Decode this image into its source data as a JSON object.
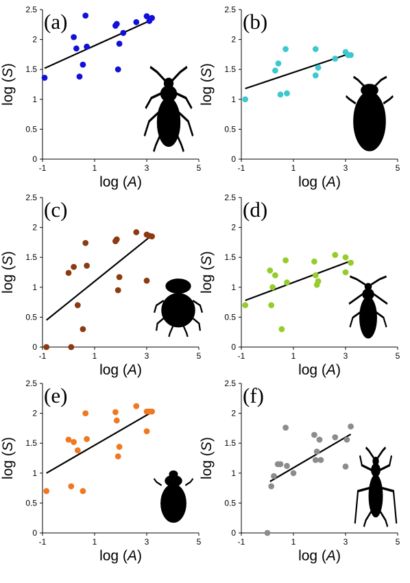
{
  "chart_data": [
    {
      "type": "scatter",
      "panel_label": "(a)",
      "xlabel_prefix": "log (",
      "xlabel_var": "A",
      "xlabel_suffix": ")",
      "ylabel_prefix": "log (",
      "ylabel_var": "S",
      "ylabel_suffix": ")",
      "xlim": [
        -1,
        5
      ],
      "ylim": [
        0,
        2.5
      ],
      "x_ticks": [
        "-1",
        "1",
        "3",
        "5"
      ],
      "y_ticks": [
        "0",
        "0.5",
        "1",
        "1.5",
        "2",
        "2.5"
      ],
      "color": "#1010d8",
      "points": [
        {
          "x": -0.92,
          "y": 1.36
        },
        {
          "x": 0.2,
          "y": 2.04
        },
        {
          "x": 0.3,
          "y": 1.85
        },
        {
          "x": 0.42,
          "y": 1.38
        },
        {
          "x": 0.55,
          "y": 1.58
        },
        {
          "x": 0.65,
          "y": 2.4
        },
        {
          "x": 0.7,
          "y": 1.88
        },
        {
          "x": 1.8,
          "y": 2.23
        },
        {
          "x": 1.85,
          "y": 2.26
        },
        {
          "x": 1.9,
          "y": 1.5
        },
        {
          "x": 1.95,
          "y": 1.93
        },
        {
          "x": 2.1,
          "y": 2.11
        },
        {
          "x": 2.6,
          "y": 2.29
        },
        {
          "x": 3.0,
          "y": 2.39
        },
        {
          "x": 3.1,
          "y": 2.31
        },
        {
          "x": 3.2,
          "y": 2.36
        }
      ],
      "fit": [
        {
          "x": -0.92,
          "y": 1.52
        },
        {
          "x": 3.2,
          "y": 2.33
        }
      ],
      "silhouette": "ground-beetle-silhouette"
    },
    {
      "type": "scatter",
      "panel_label": "(b)",
      "xlabel_prefix": "log (",
      "xlabel_var": "A",
      "xlabel_suffix": ")",
      "ylabel_prefix": "log (",
      "ylabel_var": "S",
      "ylabel_suffix": ")",
      "xlim": [
        -1,
        5
      ],
      "ylim": [
        0,
        2.5
      ],
      "x_ticks": [
        "-1",
        "1",
        "3",
        "5"
      ],
      "y_ticks": [
        "0",
        "0.5",
        "1",
        "1.5",
        "2",
        "2.5"
      ],
      "color": "#3cc8d0",
      "points": [
        {
          "x": -0.85,
          "y": 1.0
        },
        {
          "x": 0.3,
          "y": 1.48
        },
        {
          "x": 0.42,
          "y": 1.6
        },
        {
          "x": 0.5,
          "y": 1.08
        },
        {
          "x": 0.7,
          "y": 1.84
        },
        {
          "x": 0.75,
          "y": 1.1
        },
        {
          "x": 1.85,
          "y": 1.84
        },
        {
          "x": 1.85,
          "y": 1.4
        },
        {
          "x": 1.95,
          "y": 1.53
        },
        {
          "x": 2.6,
          "y": 1.68
        },
        {
          "x": 3.0,
          "y": 1.79
        },
        {
          "x": 3.1,
          "y": 1.74
        },
        {
          "x": 3.2,
          "y": 1.74
        }
      ],
      "fit": [
        {
          "x": -0.85,
          "y": 1.18
        },
        {
          "x": 3.2,
          "y": 1.77
        }
      ],
      "silhouette": "diving-beetle-silhouette"
    },
    {
      "type": "scatter",
      "panel_label": "(c)",
      "xlabel_prefix": "log (",
      "xlabel_var": "A",
      "xlabel_suffix": ")",
      "ylabel_prefix": "log (",
      "ylabel_var": "S",
      "ylabel_suffix": ")",
      "xlim": [
        -1,
        5
      ],
      "ylim": [
        0,
        2.5
      ],
      "x_ticks": [
        "-1",
        "1",
        "3",
        "5"
      ],
      "y_ticks": [
        "0",
        "0.5",
        "1",
        "1.5",
        "2",
        "2.5"
      ],
      "color": "#8b3a12",
      "points": [
        {
          "x": -0.85,
          "y": 0.0
        },
        {
          "x": 0.0,
          "y": 1.24
        },
        {
          "x": 0.1,
          "y": 0.0
        },
        {
          "x": 0.2,
          "y": 1.34
        },
        {
          "x": 0.35,
          "y": 0.7
        },
        {
          "x": 0.55,
          "y": 0.3
        },
        {
          "x": 0.65,
          "y": 1.74
        },
        {
          "x": 0.7,
          "y": 1.36
        },
        {
          "x": 1.8,
          "y": 1.77
        },
        {
          "x": 1.85,
          "y": 1.8
        },
        {
          "x": 1.9,
          "y": 0.95
        },
        {
          "x": 1.95,
          "y": 1.17
        },
        {
          "x": 2.6,
          "y": 1.92
        },
        {
          "x": 3.0,
          "y": 1.11
        },
        {
          "x": 3.0,
          "y": 1.88
        },
        {
          "x": 3.1,
          "y": 1.86
        },
        {
          "x": 3.2,
          "y": 1.85
        }
      ],
      "fit": [
        {
          "x": -0.85,
          "y": 0.45
        },
        {
          "x": 3.2,
          "y": 1.87
        }
      ],
      "silhouette": "dung-beetle-silhouette"
    },
    {
      "type": "scatter",
      "panel_label": "(d)",
      "xlabel_prefix": "log (",
      "xlabel_var": "A",
      "xlabel_suffix": ")",
      "ylabel_prefix": "log (",
      "ylabel_var": "S",
      "ylabel_suffix": ")",
      "xlim": [
        -1,
        5
      ],
      "ylim": [
        0,
        2.5
      ],
      "x_ticks": [
        "-1",
        "1",
        "3",
        "5"
      ],
      "y_ticks": [
        "0",
        "0.5",
        "1",
        "1.5",
        "2",
        "2.5"
      ],
      "color": "#96cc2a",
      "points": [
        {
          "x": -0.85,
          "y": 0.7
        },
        {
          "x": 0.1,
          "y": 1.28
        },
        {
          "x": 0.15,
          "y": 0.7
        },
        {
          "x": 0.2,
          "y": 1.0
        },
        {
          "x": 0.3,
          "y": 1.2
        },
        {
          "x": 0.55,
          "y": 0.3
        },
        {
          "x": 0.7,
          "y": 1.45
        },
        {
          "x": 0.75,
          "y": 1.08
        },
        {
          "x": 1.8,
          "y": 1.43
        },
        {
          "x": 1.85,
          "y": 1.2
        },
        {
          "x": 1.9,
          "y": 1.04
        },
        {
          "x": 1.95,
          "y": 1.1
        },
        {
          "x": 2.6,
          "y": 1.54
        },
        {
          "x": 3.0,
          "y": 1.5
        },
        {
          "x": 3.0,
          "y": 1.25
        },
        {
          "x": 3.2,
          "y": 1.41
        }
      ],
      "fit": [
        {
          "x": -0.85,
          "y": 0.78
        },
        {
          "x": 3.2,
          "y": 1.44
        }
      ],
      "silhouette": "crawling-water-beetle-silhouette"
    },
    {
      "type": "scatter",
      "panel_label": "(e)",
      "xlabel_prefix": "log (",
      "xlabel_var": "A",
      "xlabel_suffix": ")",
      "ylabel_prefix": "log (",
      "ylabel_var": "S",
      "ylabel_suffix": ")",
      "xlim": [
        -1,
        5
      ],
      "ylim": [
        0,
        2.5
      ],
      "x_ticks": [
        "-1",
        "1",
        "3",
        "5"
      ],
      "y_ticks": [
        "0",
        "0.5",
        "1",
        "1.5",
        "2",
        "2.5"
      ],
      "color": "#f07820",
      "points": [
        {
          "x": -0.85,
          "y": 0.7
        },
        {
          "x": 0.0,
          "y": 1.56
        },
        {
          "x": 0.1,
          "y": 0.78
        },
        {
          "x": 0.2,
          "y": 1.52
        },
        {
          "x": 0.35,
          "y": 1.38
        },
        {
          "x": 0.55,
          "y": 0.7
        },
        {
          "x": 0.65,
          "y": 2.0
        },
        {
          "x": 0.7,
          "y": 1.57
        },
        {
          "x": 1.8,
          "y": 2.02
        },
        {
          "x": 1.85,
          "y": 1.88
        },
        {
          "x": 1.9,
          "y": 1.28
        },
        {
          "x": 1.95,
          "y": 1.44
        },
        {
          "x": 2.6,
          "y": 2.12
        },
        {
          "x": 3.0,
          "y": 1.7
        },
        {
          "x": 3.0,
          "y": 2.03
        },
        {
          "x": 3.1,
          "y": 2.03
        },
        {
          "x": 3.2,
          "y": 2.03
        }
      ],
      "fit": [
        {
          "x": -0.85,
          "y": 1.0
        },
        {
          "x": 3.2,
          "y": 2.02
        }
      ],
      "silhouette": "scarab-beetle-silhouette"
    },
    {
      "type": "scatter",
      "panel_label": "(f)",
      "xlabel_prefix": "log (",
      "xlabel_var": "A",
      "xlabel_suffix": ")",
      "ylabel_prefix": "log (",
      "ylabel_var": "S",
      "ylabel_suffix": ")",
      "xlim": [
        -1,
        5
      ],
      "ylim": [
        0,
        2.5
      ],
      "x_ticks": [
        "-1",
        "1",
        "3",
        "5"
      ],
      "y_ticks": [
        "0",
        "0.5",
        "1",
        "1.5",
        "2",
        "2.5"
      ],
      "color": "#8c8c8c",
      "points": [
        {
          "x": 0.0,
          "y": 0.0
        },
        {
          "x": 0.15,
          "y": 0.78
        },
        {
          "x": 0.25,
          "y": 0.95
        },
        {
          "x": 0.4,
          "y": 1.15
        },
        {
          "x": 0.5,
          "y": 1.15
        },
        {
          "x": 0.7,
          "y": 1.76
        },
        {
          "x": 0.75,
          "y": 1.12
        },
        {
          "x": 1.0,
          "y": 1.0
        },
        {
          "x": 1.8,
          "y": 1.64
        },
        {
          "x": 1.85,
          "y": 1.22
        },
        {
          "x": 1.9,
          "y": 1.36
        },
        {
          "x": 2.0,
          "y": 1.56
        },
        {
          "x": 2.05,
          "y": 1.22
        },
        {
          "x": 2.6,
          "y": 1.6
        },
        {
          "x": 3.0,
          "y": 1.11
        },
        {
          "x": 3.05,
          "y": 1.56
        },
        {
          "x": 3.2,
          "y": 1.78
        }
      ],
      "fit": [
        {
          "x": 0.1,
          "y": 0.86
        },
        {
          "x": 3.2,
          "y": 1.65
        }
      ],
      "silhouette": "long-legged-beetle-silhouette"
    }
  ]
}
